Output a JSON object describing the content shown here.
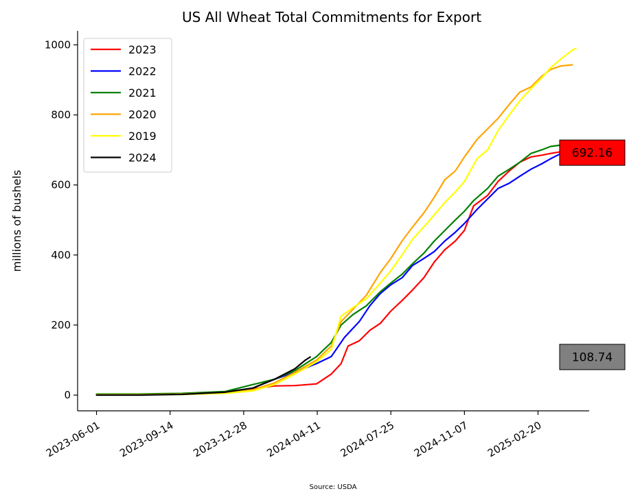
{
  "chart_data": {
    "type": "line",
    "title": "US All Wheat Total Commitments for Export",
    "ylabel": "millions of bushels",
    "xlabel": "",
    "source": "Source: USDA",
    "ylim": [
      -45,
      1040
    ],
    "xlim": [
      "2023-05-05",
      "2025-05-04"
    ],
    "x_ticks": [
      "2023-06-01",
      "2023-09-14",
      "2023-12-28",
      "2024-04-11",
      "2024-07-25",
      "2024-11-07",
      "2025-02-20"
    ],
    "y_ticks": [
      0,
      200,
      400,
      600,
      800,
      1000
    ],
    "grid": false,
    "legend_position": "top-left",
    "callouts": [
      {
        "text": "692.16",
        "value": 692.16,
        "color": "#ff0000"
      },
      {
        "text": "108.74",
        "value": 108.74,
        "color": "#808080"
      }
    ],
    "series": [
      {
        "name": "2023",
        "color": "#ff0000",
        "points": [
          [
            "2023-06-01",
            2
          ],
          [
            "2023-08-01",
            2
          ],
          [
            "2023-10-01",
            4
          ],
          [
            "2023-12-01",
            7
          ],
          [
            "2024-01-10",
            18
          ],
          [
            "2024-02-10",
            26
          ],
          [
            "2024-03-10",
            27
          ],
          [
            "2024-04-10",
            32
          ],
          [
            "2024-05-01",
            60
          ],
          [
            "2024-05-15",
            90
          ],
          [
            "2024-05-25",
            140
          ],
          [
            "2024-06-10",
            155
          ],
          [
            "2024-06-25",
            185
          ],
          [
            "2024-07-10",
            205
          ],
          [
            "2024-07-25",
            240
          ],
          [
            "2024-08-10",
            270
          ],
          [
            "2024-08-25",
            300
          ],
          [
            "2024-09-10",
            335
          ],
          [
            "2024-09-25",
            380
          ],
          [
            "2024-10-10",
            415
          ],
          [
            "2024-10-25",
            440
          ],
          [
            "2024-11-07",
            470
          ],
          [
            "2024-11-20",
            540
          ],
          [
            "2024-12-10",
            570
          ],
          [
            "2024-12-25",
            610
          ],
          [
            "2025-01-10",
            640
          ],
          [
            "2025-01-25",
            665
          ],
          [
            "2025-02-10",
            680
          ],
          [
            "2025-02-25",
            685
          ],
          [
            "2025-03-10",
            690
          ],
          [
            "2025-03-25",
            695
          ],
          [
            "2025-04-10",
            692.16
          ]
        ]
      },
      {
        "name": "2022",
        "color": "#0000ff",
        "points": [
          [
            "2023-06-01",
            2
          ],
          [
            "2023-08-01",
            2
          ],
          [
            "2023-10-01",
            4
          ],
          [
            "2023-12-01",
            8
          ],
          [
            "2024-01-10",
            20
          ],
          [
            "2024-02-10",
            45
          ],
          [
            "2024-03-10",
            65
          ],
          [
            "2024-04-10",
            90
          ],
          [
            "2024-05-01",
            110
          ],
          [
            "2024-05-20",
            165
          ],
          [
            "2024-06-10",
            210
          ],
          [
            "2024-06-25",
            255
          ],
          [
            "2024-07-10",
            290
          ],
          [
            "2024-07-25",
            315
          ],
          [
            "2024-08-10",
            335
          ],
          [
            "2024-08-25",
            370
          ],
          [
            "2024-09-10",
            390
          ],
          [
            "2024-09-25",
            410
          ],
          [
            "2024-10-10",
            440
          ],
          [
            "2024-10-25",
            465
          ],
          [
            "2024-11-07",
            490
          ],
          [
            "2024-11-25",
            530
          ],
          [
            "2024-12-10",
            560
          ],
          [
            "2024-12-25",
            590
          ],
          [
            "2025-01-10",
            605
          ],
          [
            "2025-01-25",
            625
          ],
          [
            "2025-02-10",
            645
          ],
          [
            "2025-02-25",
            660
          ],
          [
            "2025-03-10",
            675
          ],
          [
            "2025-03-25",
            690
          ],
          [
            "2025-04-10",
            688
          ]
        ]
      },
      {
        "name": "2021",
        "color": "#008000",
        "points": [
          [
            "2023-06-01",
            3
          ],
          [
            "2023-08-01",
            3
          ],
          [
            "2023-10-01",
            5
          ],
          [
            "2023-12-01",
            10
          ],
          [
            "2024-01-10",
            30
          ],
          [
            "2024-02-10",
            45
          ],
          [
            "2024-03-10",
            70
          ],
          [
            "2024-04-10",
            110
          ],
          [
            "2024-05-01",
            150
          ],
          [
            "2024-05-15",
            200
          ],
          [
            "2024-06-01",
            230
          ],
          [
            "2024-06-20",
            255
          ],
          [
            "2024-07-10",
            295
          ],
          [
            "2024-07-25",
            320
          ],
          [
            "2024-08-10",
            345
          ],
          [
            "2024-08-25",
            375
          ],
          [
            "2024-09-10",
            405
          ],
          [
            "2024-09-25",
            440
          ],
          [
            "2024-10-10",
            470
          ],
          [
            "2024-10-25",
            500
          ],
          [
            "2024-11-07",
            525
          ],
          [
            "2024-11-20",
            555
          ],
          [
            "2024-12-10",
            590
          ],
          [
            "2024-12-25",
            625
          ],
          [
            "2025-01-10",
            645
          ],
          [
            "2025-01-25",
            665
          ],
          [
            "2025-02-10",
            690
          ],
          [
            "2025-02-25",
            700
          ],
          [
            "2025-03-10",
            710
          ],
          [
            "2025-03-25",
            714
          ],
          [
            "2025-04-10",
            715
          ]
        ]
      },
      {
        "name": "2020",
        "color": "#ffa500",
        "points": [
          [
            "2023-06-01",
            1
          ],
          [
            "2023-08-01",
            1
          ],
          [
            "2023-10-01",
            3
          ],
          [
            "2023-12-01",
            7
          ],
          [
            "2024-01-10",
            15
          ],
          [
            "2024-02-10",
            35
          ],
          [
            "2024-03-10",
            65
          ],
          [
            "2024-04-10",
            100
          ],
          [
            "2024-05-01",
            140
          ],
          [
            "2024-05-15",
            210
          ],
          [
            "2024-06-01",
            245
          ],
          [
            "2024-06-20",
            285
          ],
          [
            "2024-07-10",
            350
          ],
          [
            "2024-07-25",
            390
          ],
          [
            "2024-08-10",
            440
          ],
          [
            "2024-08-25",
            480
          ],
          [
            "2024-09-10",
            520
          ],
          [
            "2024-09-25",
            565
          ],
          [
            "2024-10-10",
            615
          ],
          [
            "2024-10-25",
            640
          ],
          [
            "2024-11-07",
            680
          ],
          [
            "2024-11-25",
            730
          ],
          [
            "2024-12-10",
            760
          ],
          [
            "2024-12-25",
            790
          ],
          [
            "2025-01-10",
            830
          ],
          [
            "2025-01-25",
            865
          ],
          [
            "2025-02-10",
            880
          ],
          [
            "2025-02-25",
            910
          ],
          [
            "2025-03-10",
            930
          ],
          [
            "2025-03-25",
            940
          ],
          [
            "2025-04-10",
            943
          ]
        ]
      },
      {
        "name": "2019",
        "color": "#ffff00",
        "points": [
          [
            "2023-06-01",
            1
          ],
          [
            "2023-08-01",
            1
          ],
          [
            "2023-10-01",
            2
          ],
          [
            "2023-12-01",
            5
          ],
          [
            "2024-01-10",
            12
          ],
          [
            "2024-02-10",
            30
          ],
          [
            "2024-03-10",
            60
          ],
          [
            "2024-04-10",
            95
          ],
          [
            "2024-05-01",
            130
          ],
          [
            "2024-05-15",
            225
          ],
          [
            "2024-06-01",
            250
          ],
          [
            "2024-06-20",
            275
          ],
          [
            "2024-07-10",
            320
          ],
          [
            "2024-07-25",
            355
          ],
          [
            "2024-08-10",
            400
          ],
          [
            "2024-08-25",
            445
          ],
          [
            "2024-09-10",
            480
          ],
          [
            "2024-09-25",
            515
          ],
          [
            "2024-10-10",
            550
          ],
          [
            "2024-10-25",
            580
          ],
          [
            "2024-11-07",
            610
          ],
          [
            "2024-11-25",
            675
          ],
          [
            "2024-12-10",
            700
          ],
          [
            "2024-12-25",
            755
          ],
          [
            "2025-01-10",
            800
          ],
          [
            "2025-01-25",
            840
          ],
          [
            "2025-02-10",
            875
          ],
          [
            "2025-02-25",
            905
          ],
          [
            "2025-03-10",
            935
          ],
          [
            "2025-03-25",
            960
          ],
          [
            "2025-04-10",
            985
          ],
          [
            "2025-04-15",
            990
          ]
        ]
      },
      {
        "name": "2024",
        "color": "#000000",
        "points": [
          [
            "2023-06-01",
            0
          ],
          [
            "2023-08-01",
            0
          ],
          [
            "2023-10-01",
            2
          ],
          [
            "2023-12-01",
            8
          ],
          [
            "2024-01-10",
            20
          ],
          [
            "2024-02-10",
            45
          ],
          [
            "2024-03-10",
            75
          ],
          [
            "2024-03-25",
            100
          ],
          [
            "2024-04-01",
            108.74
          ]
        ]
      }
    ]
  }
}
